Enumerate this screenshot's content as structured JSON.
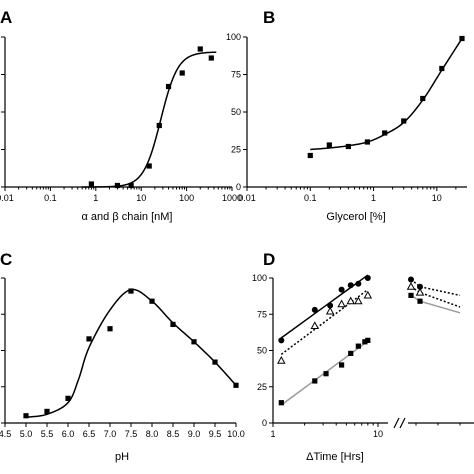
{
  "chart_data": [
    {
      "panel": "A",
      "type": "scatter",
      "xlabel": "α and β chain [nM]",
      "ylabel": "",
      "x_scale": "log",
      "xlim": [
        0.01,
        1000
      ],
      "ylim": [
        0,
        100
      ],
      "x_ticks": [
        "0.01",
        "0.1",
        "1",
        "10",
        "100",
        "1000"
      ],
      "y_ticks": [
        "0",
        "25",
        "50",
        "75",
        "100"
      ],
      "y_tick_labels_visible": [
        "",
        "",
        "",
        "",
        ""
      ],
      "series": [
        {
          "marker": "square",
          "x": [
            0.8,
            3,
            6,
            15,
            25,
            40,
            80,
            200,
            350
          ],
          "y": [
            2,
            1,
            1,
            14,
            41,
            67,
            76,
            92,
            86
          ]
        }
      ],
      "fit": {
        "kind": "sigmoid",
        "bottom": 0,
        "top": 90,
        "ec50": 27,
        "hill": 2.3
      },
      "grid": false
    },
    {
      "panel": "B",
      "type": "scatter",
      "xlabel": "Glycerol [%]",
      "ylabel": "",
      "x_scale": "log",
      "xlim": [
        0.01,
        30
      ],
      "ylim": [
        0,
        100
      ],
      "x_ticks": [
        "0.01",
        "0.1",
        "1",
        "10"
      ],
      "y_ticks": [
        "0",
        "25",
        "50",
        "75",
        "100"
      ],
      "series": [
        {
          "marker": "square",
          "x": [
            0.1,
            0.2,
            0.4,
            0.8,
            1.5,
            3,
            6,
            12,
            25
          ],
          "y": [
            21,
            28,
            27,
            30,
            36,
            44,
            59,
            79,
            99
          ]
        }
      ],
      "fit": {
        "kind": "curve",
        "x": [
          0.1,
          0.2,
          0.4,
          0.8,
          1.5,
          3,
          6,
          12,
          25
        ],
        "y": [
          25,
          26,
          27.5,
          30,
          35,
          43,
          58,
          78,
          99
        ]
      },
      "grid": false
    },
    {
      "panel": "C",
      "type": "scatter",
      "xlabel": "pH",
      "ylabel": "",
      "x_scale": "linear",
      "xlim": [
        4.5,
        10.0
      ],
      "ylim": [
        0,
        100
      ],
      "x_ticks": [
        "4.5",
        "5.0",
        "5.5",
        "6.0",
        "6.5",
        "7.0",
        "7.5",
        "8.0",
        "8.5",
        "9.0",
        "9.5",
        "10.0"
      ],
      "y_ticks": [
        "0",
        "25",
        "50",
        "75",
        "100"
      ],
      "series": [
        {
          "marker": "square",
          "x": [
            5.0,
            5.5,
            6.0,
            6.5,
            7.0,
            7.5,
            8.0,
            8.5,
            9.0,
            9.5,
            10.0
          ],
          "y": [
            5,
            8,
            17,
            58,
            65,
            91,
            84,
            68,
            56,
            42,
            26
          ]
        }
      ],
      "fit": {
        "kind": "curve",
        "x": [
          5.0,
          5.5,
          6.0,
          6.25,
          6.5,
          7.0,
          7.5,
          8.0,
          8.5,
          9.0,
          9.5,
          10.0
        ],
        "y": [
          4,
          6,
          14,
          30,
          52,
          78,
          92,
          84,
          69,
          56,
          42,
          26
        ]
      },
      "grid": false
    },
    {
      "panel": "D",
      "type": "line",
      "xlabel": "ΔTime [Hrs]",
      "ylabel": "",
      "x_scale": "log",
      "xlim": [
        1,
        10
      ],
      "ylim": [
        0,
        100
      ],
      "x_ticks": [
        "1",
        "10"
      ],
      "y_ticks": [
        "0",
        "25",
        "50",
        "75",
        "100"
      ],
      "axis_break": true,
      "series": [
        {
          "marker": "circle",
          "line": "solid",
          "line_color": "#000000",
          "x": [
            1.2,
            2.5,
            3.5,
            4.5,
            5.5,
            6.5,
            8
          ],
          "y": [
            57,
            78,
            81,
            92,
            95,
            96,
            100
          ]
        },
        {
          "marker": "triangle-open",
          "line": "dotted",
          "line_color": "#000000",
          "x": [
            1.2,
            2.5,
            3.5,
            4.5,
            5.5,
            6.5,
            8
          ],
          "y": [
            43,
            67,
            77,
            82,
            84,
            84,
            88
          ]
        },
        {
          "marker": "square",
          "line": "solid",
          "line_color": "#9a9a9a",
          "x": [
            1.2,
            2.5,
            3.2,
            4.5,
            5.5,
            6.5,
            7.5,
            8
          ],
          "y": [
            14,
            29,
            34,
            40,
            48,
            53,
            56,
            57
          ]
        }
      ],
      "right_segment": {
        "series": [
          {
            "marker": "circle",
            "line": "dotted",
            "line_color": "#000000",
            "y": [
              99,
              94,
              88
            ]
          },
          {
            "marker": "triangle-open",
            "line": "dotted",
            "line_color": "#000000",
            "y": [
              94,
              90,
              80
            ]
          },
          {
            "marker": "square",
            "line": "solid",
            "line_color": "#9a9a9a",
            "y": [
              88,
              84,
              76
            ]
          }
        ]
      },
      "grid": false
    }
  ],
  "panel_labels": [
    "A",
    "B",
    "C",
    "D"
  ]
}
